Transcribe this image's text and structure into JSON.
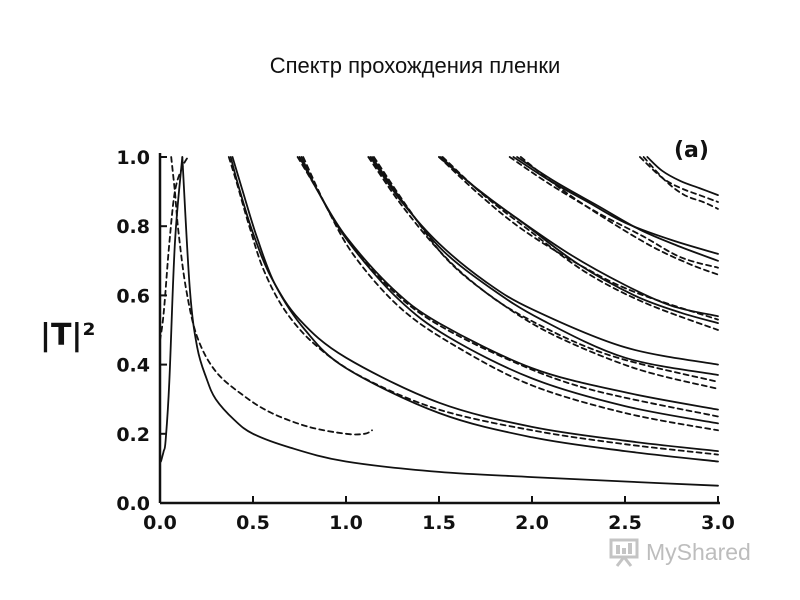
{
  "slide": {
    "title": "Спектр прохождения пленки"
  },
  "watermark": {
    "brand": "MyShared",
    "icon": "presentation-board-icon"
  },
  "chart_data": {
    "type": "line",
    "title": "",
    "panel_label": "(a)",
    "xlabel": "",
    "ylabel": "|T|²",
    "xlim": [
      0,
      3
    ],
    "ylim": [
      0,
      1
    ],
    "xticks": [
      "0.0",
      "0.5",
      "1.0",
      "1.5",
      "2.0",
      "2.5",
      "3.0"
    ],
    "yticks": [
      "0.0",
      "0.2",
      "0.4",
      "0.6",
      "0.8",
      "1.0"
    ],
    "grid": false,
    "legend": "none",
    "colors": {
      "curves": "#111111",
      "axes": "#111111"
    },
    "series": [
      {
        "style": "solid",
        "x": [
          0.0,
          0.005,
          0.01,
          0.02,
          0.03,
          0.05,
          0.08,
          0.12
        ],
        "y": [
          0.12,
          0.12,
          0.13,
          0.15,
          0.18,
          0.35,
          0.75,
          1.0
        ]
      },
      {
        "style": "solid",
        "x": [
          0.12,
          0.16,
          0.2,
          0.25,
          0.3,
          0.4,
          0.5,
          0.7,
          1.0,
          1.5,
          2.0,
          2.5,
          3.0
        ],
        "y": [
          1.0,
          0.62,
          0.45,
          0.36,
          0.3,
          0.24,
          0.2,
          0.16,
          0.12,
          0.09,
          0.075,
          0.062,
          0.05
        ]
      },
      {
        "style": "dashed",
        "x": [
          0.0,
          0.02,
          0.05,
          0.08,
          0.12,
          0.15
        ],
        "y": [
          0.47,
          0.55,
          0.75,
          0.9,
          0.97,
          1.0
        ]
      },
      {
        "style": "dashed",
        "x": [
          0.06,
          0.08,
          0.1,
          0.14,
          0.2,
          0.3,
          0.45,
          0.6,
          0.8,
          1.0,
          1.1,
          1.14
        ],
        "y": [
          1.0,
          0.9,
          0.78,
          0.62,
          0.48,
          0.38,
          0.31,
          0.26,
          0.22,
          0.2,
          0.2,
          0.21
        ]
      },
      {
        "style": "solid",
        "x": [
          0.38,
          0.42,
          0.5,
          0.6,
          0.75,
          1.0,
          1.5,
          2.0,
          2.5,
          3.0
        ],
        "y": [
          1.0,
          0.92,
          0.78,
          0.65,
          0.53,
          0.42,
          0.29,
          0.22,
          0.18,
          0.15
        ]
      },
      {
        "style": "solid",
        "x": [
          0.39,
          0.44,
          0.52,
          0.62,
          0.78,
          1.0,
          1.5,
          2.0,
          2.5,
          3.0
        ],
        "y": [
          1.0,
          0.91,
          0.77,
          0.63,
          0.5,
          0.39,
          0.26,
          0.19,
          0.15,
          0.12
        ]
      },
      {
        "style": "dashed",
        "x": [
          0.37,
          0.41,
          0.48,
          0.56,
          0.68,
          0.85,
          1.1,
          1.5,
          2.0,
          2.5,
          3.0
        ],
        "y": [
          1.0,
          0.93,
          0.8,
          0.67,
          0.55,
          0.45,
          0.36,
          0.27,
          0.21,
          0.17,
          0.14
        ]
      },
      {
        "style": "solid",
        "x": [
          0.75,
          0.85,
          1.0,
          1.25,
          1.5,
          2.0,
          2.5,
          3.0
        ],
        "y": [
          1.0,
          0.9,
          0.77,
          0.62,
          0.52,
          0.39,
          0.32,
          0.27
        ]
      },
      {
        "style": "solid",
        "x": [
          0.76,
          0.86,
          1.02,
          1.28,
          1.55,
          2.0,
          2.5,
          3.0
        ],
        "y": [
          1.0,
          0.89,
          0.75,
          0.59,
          0.48,
          0.36,
          0.28,
          0.23
        ]
      },
      {
        "style": "dashed",
        "x": [
          0.74,
          0.84,
          0.98,
          1.2,
          1.45,
          1.85,
          2.3,
          3.0
        ],
        "y": [
          1.0,
          0.91,
          0.78,
          0.64,
          0.53,
          0.42,
          0.33,
          0.25
        ]
      },
      {
        "style": "dashed",
        "x": [
          0.77,
          0.9,
          1.05,
          1.3,
          1.6,
          2.0,
          2.5,
          3.0
        ],
        "y": [
          1.0,
          0.85,
          0.71,
          0.56,
          0.45,
          0.34,
          0.26,
          0.21
        ]
      },
      {
        "style": "solid",
        "x": [
          1.13,
          1.3,
          1.5,
          1.75,
          2.0,
          2.5,
          3.0
        ],
        "y": [
          1.0,
          0.87,
          0.75,
          0.64,
          0.56,
          0.45,
          0.4
        ]
      },
      {
        "style": "solid",
        "x": [
          1.14,
          1.32,
          1.52,
          1.78,
          2.05,
          2.5,
          3.0
        ],
        "y": [
          1.0,
          0.86,
          0.73,
          0.62,
          0.53,
          0.42,
          0.37
        ]
      },
      {
        "style": "dashed",
        "x": [
          1.12,
          1.3,
          1.5,
          1.7,
          1.95,
          2.4,
          3.0
        ],
        "y": [
          1.0,
          0.86,
          0.73,
          0.63,
          0.54,
          0.43,
          0.35
        ]
      },
      {
        "style": "dashed",
        "x": [
          1.15,
          1.35,
          1.55,
          1.8,
          2.1,
          2.55,
          3.0
        ],
        "y": [
          1.0,
          0.84,
          0.7,
          0.59,
          0.49,
          0.39,
          0.33
        ]
      },
      {
        "style": "solid",
        "x": [
          1.5,
          1.7,
          1.9,
          2.2,
          2.5,
          2.75,
          3.0
        ],
        "y": [
          1.0,
          0.91,
          0.83,
          0.72,
          0.63,
          0.57,
          0.54
        ]
      },
      {
        "style": "solid",
        "x": [
          1.51,
          1.72,
          1.95,
          2.25,
          2.55,
          2.8,
          3.0
        ],
        "y": [
          1.0,
          0.9,
          0.81,
          0.69,
          0.6,
          0.55,
          0.52
        ]
      },
      {
        "style": "dashed",
        "x": [
          1.52,
          1.74,
          1.98,
          2.28,
          2.6,
          3.0
        ],
        "y": [
          1.0,
          0.89,
          0.79,
          0.67,
          0.58,
          0.5
        ]
      },
      {
        "style": "dashed",
        "x": [
          1.5,
          1.72,
          1.95,
          2.25,
          2.55,
          3.0
        ],
        "y": [
          1.0,
          0.89,
          0.79,
          0.69,
          0.61,
          0.53
        ]
      },
      {
        "style": "solid",
        "x": [
          1.9,
          2.1,
          2.3,
          2.5,
          2.75,
          3.0
        ],
        "y": [
          1.0,
          0.93,
          0.87,
          0.81,
          0.76,
          0.72
        ]
      },
      {
        "style": "solid",
        "x": [
          1.92,
          2.12,
          2.35,
          2.58,
          2.8,
          3.0
        ],
        "y": [
          1.0,
          0.93,
          0.86,
          0.79,
          0.74,
          0.7
        ]
      },
      {
        "style": "dashed",
        "x": [
          1.88,
          2.1,
          2.35,
          2.6,
          2.8,
          3.0
        ],
        "y": [
          1.0,
          0.92,
          0.84,
          0.77,
          0.71,
          0.68
        ]
      },
      {
        "style": "dashed",
        "x": [
          1.94,
          2.15,
          2.4,
          2.65,
          2.85,
          3.0
        ],
        "y": [
          1.0,
          0.91,
          0.82,
          0.74,
          0.69,
          0.66
        ]
      },
      {
        "style": "solid",
        "x": [
          2.62,
          2.7,
          2.8,
          2.9,
          3.0
        ],
        "y": [
          1.0,
          0.96,
          0.93,
          0.91,
          0.89
        ]
      },
      {
        "style": "dashed",
        "x": [
          2.58,
          2.7,
          2.8,
          2.9,
          3.0
        ],
        "y": [
          1.0,
          0.94,
          0.91,
          0.89,
          0.87
        ]
      },
      {
        "style": "dashed",
        "x": [
          2.6,
          2.72,
          2.82,
          2.92,
          3.0
        ],
        "y": [
          1.0,
          0.93,
          0.89,
          0.87,
          0.85
        ]
      }
    ]
  }
}
